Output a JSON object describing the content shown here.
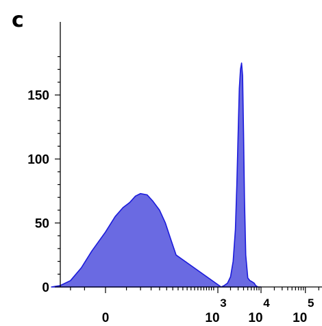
{
  "panel_label": "c",
  "chart_data": {
    "type": "area",
    "title": "",
    "xlabel": "",
    "ylabel": "",
    "x_scale": "biexponential",
    "xlim": [
      -300,
      150000
    ],
    "ylim": [
      0,
      190
    ],
    "y_ticks": [
      {
        "value": 0,
        "label": "0"
      },
      {
        "value": 50,
        "label": "50"
      },
      {
        "value": 100,
        "label": "100"
      },
      {
        "value": 150,
        "label": "150"
      }
    ],
    "x_ticks": [
      {
        "value": 0,
        "label": "0",
        "exponent": ""
      },
      {
        "value": 1000,
        "label": "10",
        "exponent": "3"
      },
      {
        "value": 10000,
        "label": "10",
        "exponent": "4"
      },
      {
        "value": 100000,
        "label": "10",
        "exponent": "5"
      }
    ],
    "fill_color": "#6a6ae2",
    "line_color": "#1a1adb",
    "grid": false,
    "series": [
      {
        "x": [
          -200,
          -150,
          -100,
          -60,
          -30,
          0,
          20,
          40,
          60,
          80,
          100,
          130,
          160,
          200,
          240,
          280,
          330,
          1200,
          1400,
          1700,
          2000,
          2300,
          2600,
          2800,
          3000,
          3200,
          3400,
          3600,
          3800,
          4000,
          4200,
          4500,
          5000,
          5600,
          6300,
          7000,
          7600,
          8500,
          10000
        ],
        "y": [
          0,
          1,
          5,
          15,
          28,
          43,
          55,
          62,
          66,
          71,
          73,
          72,
          67,
          60,
          50,
          38,
          25,
          0,
          1,
          3,
          8,
          20,
          45,
          80,
          120,
          155,
          170,
          175,
          165,
          120,
          70,
          25,
          7,
          5,
          4,
          3,
          1,
          0,
          0
        ]
      }
    ]
  }
}
